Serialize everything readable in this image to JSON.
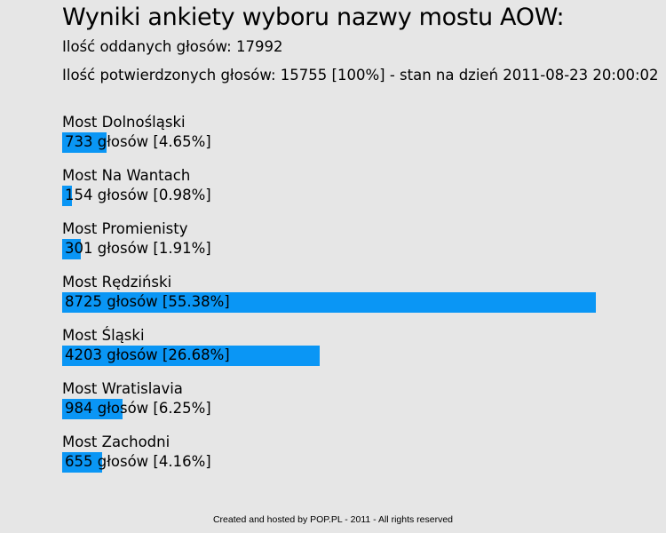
{
  "header": {
    "title": "Wyniki ankiety wyboru nazwy mostu AOW:",
    "votes_cast": "Ilość oddanych głosów: 17992",
    "votes_confirmed": "Ilość potwierdzonych głosów: 15755 [100%] - stan na dzień 2011-08-23 20:00:02"
  },
  "colors": {
    "bar": "#0a96f5",
    "background": "#e6e6e6"
  },
  "chart_data": {
    "type": "bar",
    "orientation": "horizontal",
    "title": "Wyniki ankiety wyboru nazwy mostu AOW:",
    "total_confirmed": 15755,
    "categories": [
      "Most Dolnośląski",
      "Most Na Wantach",
      "Most Promienisty",
      "Most Rędziński",
      "Most Śląski",
      "Most Wratislavia",
      "Most Zachodni"
    ],
    "values": [
      733,
      154,
      301,
      8725,
      4203,
      984,
      655
    ],
    "percents": [
      4.65,
      0.98,
      1.91,
      55.38,
      26.68,
      6.25,
      4.16
    ],
    "labels": [
      "733 głosów [4.65%]",
      "154 głosów [0.98%]",
      "301 głosów [1.91%]",
      "8725 głosów [55.38%]",
      "4203 głosów [26.68%]",
      "984 głosów [6.25%]",
      "655 głosów [4.16%]"
    ]
  },
  "footer": {
    "text": "Created and hosted by POP.PL - 2011 - All rights reserved"
  }
}
